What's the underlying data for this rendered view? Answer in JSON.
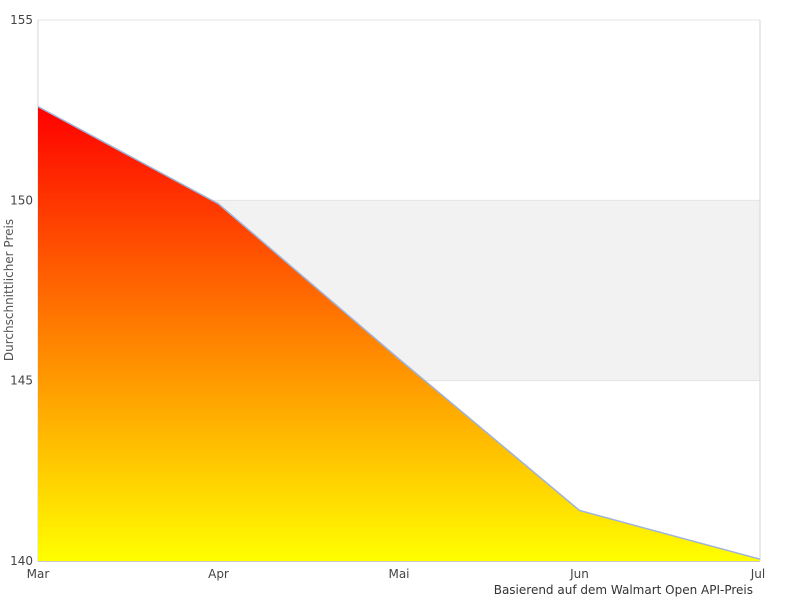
{
  "chart_data": {
    "type": "area",
    "categories": [
      "Mar",
      "Apr",
      "Mai",
      "Jun",
      "Jul"
    ],
    "series": [
      {
        "name": "Durchschnittlicher Preis",
        "values": [
          152.6,
          149.9,
          145.6,
          141.4,
          140.05
        ]
      }
    ],
    "title": "",
    "xlabel": "",
    "ylabel": "Durchschnittlicher Preis",
    "caption": "Basierend auf dem Walmart Open API-Preis",
    "ylim": [
      140,
      155
    ],
    "yticks": [
      140,
      145,
      150,
      155
    ],
    "grid": "on",
    "legend": "off",
    "plot_band": {
      "from": 145,
      "to": 150,
      "color": "#f2f2f2"
    },
    "colors": {
      "area_gradient_top": "#ff0000",
      "area_gradient_bottom": "#ffff00",
      "line": "#9fb2d8",
      "grid_line": "#e4e4e4",
      "plot_border": "#d6d6d6",
      "axis_line": "#c8c8c8",
      "tick_text": "#444444",
      "ytitle_text": "#555555",
      "caption_text": "#333333",
      "background": "#ffffff"
    }
  }
}
